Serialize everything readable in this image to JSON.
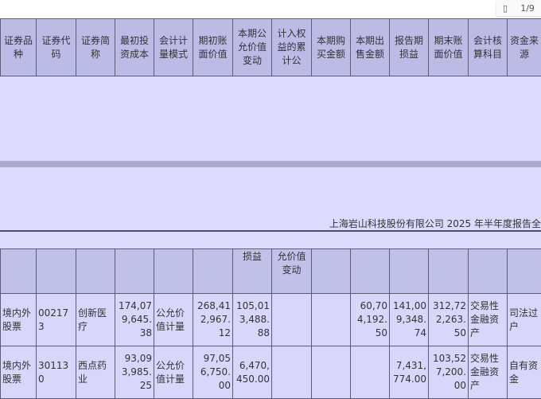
{
  "toolbar": {
    "page_icon": "page-icon",
    "page_indicator": "1/9"
  },
  "headers": [
    "证券品种",
    "证券代码",
    "证券简称",
    "最初投资成本",
    "会计计量模式",
    "期初账面价值",
    "本期公允价值变动",
    "计入权益的累计公",
    "本期购买金额",
    "本期出售金额",
    "报告期损益",
    "期末账面价值",
    "会计核算科目",
    "资金来源"
  ],
  "footer": "上海岩山科技股份有限公司 2025 年半年度报告全",
  "continuation": [
    "",
    "",
    "",
    "",
    "",
    "",
    "损益",
    "允价值变动",
    "",
    "",
    "",
    "",
    "",
    ""
  ],
  "rows": [
    [
      "境内外股票",
      "002173",
      "创新医疗",
      "174,079,645.38",
      "公允价值计量",
      "268,412,967.12",
      "105,013,488.88",
      "",
      "",
      "60,704,192.50",
      "141,009,348.74",
      "312,722,263.50",
      "交易性金融资产",
      "司法过户"
    ],
    [
      "境内外股票",
      "301130",
      "西点药业",
      "93,093,985.25",
      "公允价值计量",
      "97,056,750.00",
      "6,470,450.00",
      "",
      "",
      "",
      "7,431,774.00",
      "103,527,200.00",
      "交易性金融资产",
      "自有资金"
    ]
  ]
}
